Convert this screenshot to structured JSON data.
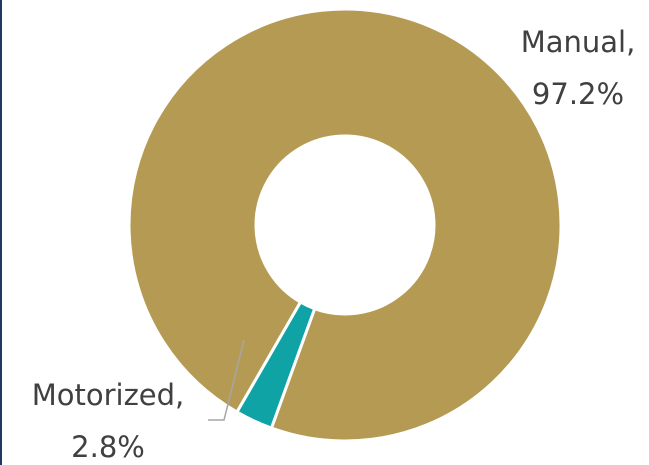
{
  "chart_data": {
    "type": "pie",
    "title": "",
    "donut": true,
    "start_angle_deg": 210,
    "slices": [
      {
        "label": "Manual",
        "value": 97.2,
        "label_line1": "Manual,",
        "label_line2": "97.2%",
        "color": "#b59a53"
      },
      {
        "label": "Motorized",
        "value": 2.8,
        "label_line1": "Motorized,",
        "label_line2": "2.8%",
        "color": "#0fa3a6"
      }
    ],
    "legend": "none"
  }
}
